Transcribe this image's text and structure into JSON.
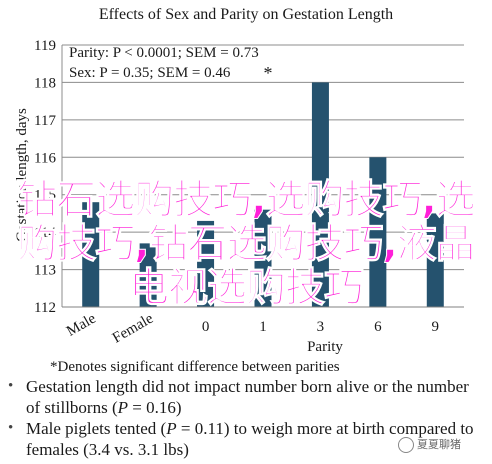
{
  "chart_data": {
    "type": "bar",
    "title": "Effects of Sex and Parity on Gestation Length",
    "xlabel": "Parity",
    "ylabel": "Gestation length, days",
    "categories": [
      "Male",
      "Female",
      "0",
      "1",
      "3",
      "6",
      "9"
    ],
    "values": [
      114.8,
      113.7,
      114.3,
      114.6,
      118.0,
      116.0,
      114.5
    ],
    "ylim": [
      112,
      119
    ],
    "yticks": [
      "112",
      "113",
      "114",
      "115",
      "116",
      "117",
      "118",
      "119"
    ],
    "grid": true,
    "bar_color": "#25526e",
    "annotations": {
      "stats_line_1": "Parity: P < 0.0001; SEM = 0.73",
      "stats_line_2": "Sex: P = 0.35; SEM = 0.46",
      "asterisk": "*",
      "footnote": "*Denotes significant difference between parities"
    }
  },
  "notes": [
    {
      "pre": "Gestation length did not impact number born alive or the number of stillborns (",
      "italic": "P",
      "post": " = 0.16)"
    },
    {
      "pre": "Male piglets tented (",
      "italic": "P",
      "post": " = 0.11) to weigh more at birth compared to females (3.4 vs. 3.1 lbs)"
    }
  ],
  "bullet_glyph": "•",
  "overlay_text": {
    "line1": "钻石选购技巧,选购技巧,选",
    "line2": "购技巧,钻石选购技巧,液晶",
    "line3": "电视选购技巧",
    "color": "#ff1fd8"
  },
  "watermark": "夏夏聊猪"
}
